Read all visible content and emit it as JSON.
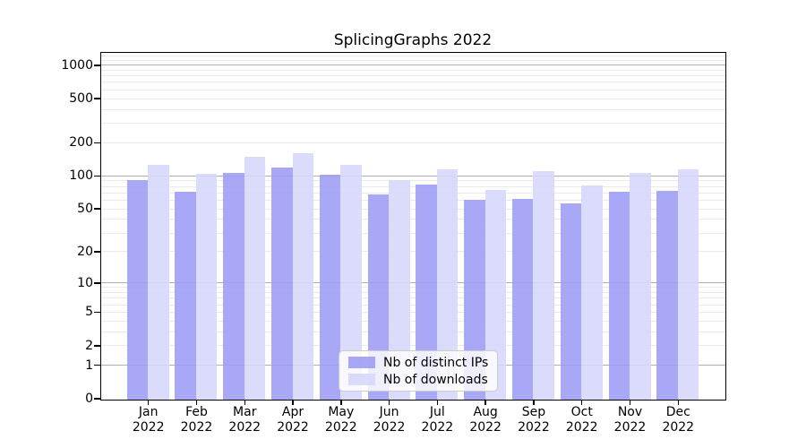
{
  "chart_data": {
    "type": "bar",
    "title": "SplicingGraphs 2022",
    "categories": [
      "Jan",
      "Feb",
      "Mar",
      "Apr",
      "May",
      "Jun",
      "Jul",
      "Aug",
      "Sep",
      "Oct",
      "Nov",
      "Dec"
    ],
    "category_year": "2022",
    "series": [
      {
        "name": "Nb of distinct IPs",
        "color": "#9b9bf5",
        "values": [
          92,
          72,
          107,
          121,
          103,
          69,
          84,
          61,
          62,
          57,
          72,
          74
        ]
      },
      {
        "name": "Nb of downloads",
        "color": "#d6d6fa",
        "values": [
          128,
          106,
          151,
          163,
          127,
          93,
          115,
          75,
          111,
          82,
          108,
          115
        ]
      }
    ],
    "y_scale": "log10(value+1)",
    "y_ticks": [
      1000,
      500,
      200,
      100,
      50,
      20,
      10,
      5,
      2,
      1,
      0
    ],
    "ylim": [
      0,
      1280
    ],
    "grid": "horizontal major and minor log gridlines",
    "legend_position": "lower center",
    "xlabel": "",
    "ylabel": ""
  },
  "colors": {
    "axis": "#000000",
    "major_gridline": "#b0b0b0",
    "minor_gridline": "#eaeaea",
    "legend_border": "#cccccc"
  }
}
